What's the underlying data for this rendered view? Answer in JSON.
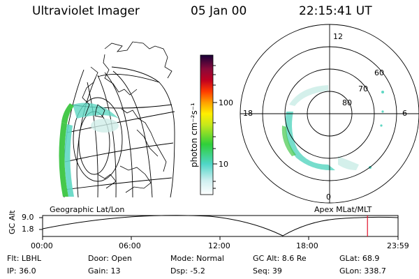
{
  "header": {
    "instrument": "Ultraviolet Imager",
    "date": "05 Jan 00",
    "time": "22:15:41 UT"
  },
  "colorbar": {
    "unit_label": "photon cm⁻²s⁻¹",
    "tick_labels": [
      "100",
      "10"
    ]
  },
  "geographic_panel": {
    "label": "Geographic Lat/Lon"
  },
  "apex_panel": {
    "label": "Apex  MLat/MLT",
    "mlt_labels": [
      "12",
      "18",
      "6",
      "0"
    ],
    "mlat_labels": [
      "60",
      "70",
      "80"
    ]
  },
  "timeline": {
    "y_axis_label": "GC Alt",
    "y_ticks": [
      "9.0",
      "1.8"
    ],
    "x_ticks": [
      "00:00",
      "06:00",
      "12:00",
      "18:00",
      "23:59"
    ],
    "current_time_fraction": 0.914
  },
  "info": {
    "filter": "Flt: LBHL",
    "ip": "IP: 36.0",
    "door": "Door: Open",
    "gain": "Gain: 13",
    "mode": "Mode: Normal",
    "dsp": "Dsp:   -5.2",
    "gc_alt": "GC Alt: 8.6 Re",
    "seq": "Seq: 39",
    "glat": "GLat:  68.9",
    "glon": "GLon: 338.7"
  },
  "colors": {
    "marker": "#e0102a",
    "emission_low": "#e6f2f0",
    "emission_mid": "#5fd7c3",
    "emission_high": "#46c84b"
  }
}
